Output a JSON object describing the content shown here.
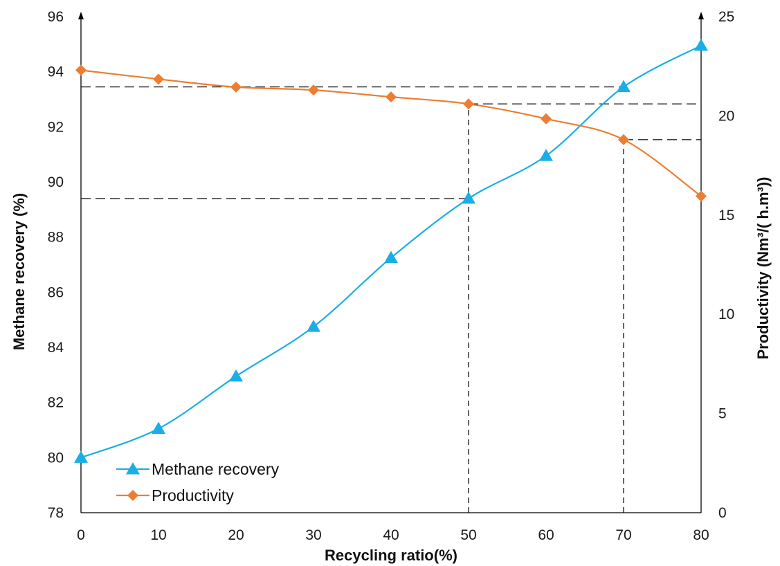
{
  "chart_data": {
    "type": "line",
    "x_values": [
      0,
      10,
      20,
      30,
      40,
      50,
      60,
      70,
      80
    ],
    "x_ticks": [
      "0",
      "10",
      "20",
      "30",
      "40",
      "50",
      "60",
      "70",
      "80"
    ],
    "xlabel": "Recycling ratio(%)",
    "ylabel_left": "Methane recovery (%)",
    "ylabel_right": "Productivity (Nm³/( h.m³))",
    "ylim_left": [
      78,
      96
    ],
    "ylim_right": [
      0,
      25
    ],
    "yticks_left": [
      "78",
      "80",
      "82",
      "84",
      "86",
      "88",
      "90",
      "92",
      "94",
      "96"
    ],
    "yticks_right": [
      "0",
      "5",
      "10",
      "15",
      "20",
      "25"
    ],
    "series": [
      {
        "name": "Methane recovery",
        "axis": "left",
        "marker": "triangle",
        "color": "#1aaee6",
        "values": [
          80.0,
          81.05,
          82.95,
          84.75,
          87.25,
          89.4,
          90.95,
          93.45,
          94.95
        ]
      },
      {
        "name": "Productivity",
        "axis": "right",
        "marker": "diamond",
        "color": "#ed7d31",
        "values": [
          22.3,
          21.85,
          21.45,
          21.3,
          20.95,
          20.6,
          19.85,
          18.8,
          15.95
        ]
      }
    ],
    "reference_lines": [
      {
        "x": 50,
        "y_left": 89.4,
        "y_right": 20.6
      },
      {
        "x": 70,
        "y_left": 93.45,
        "y_right": 18.8
      }
    ],
    "legend_position": "bottom-left",
    "grid": false
  }
}
